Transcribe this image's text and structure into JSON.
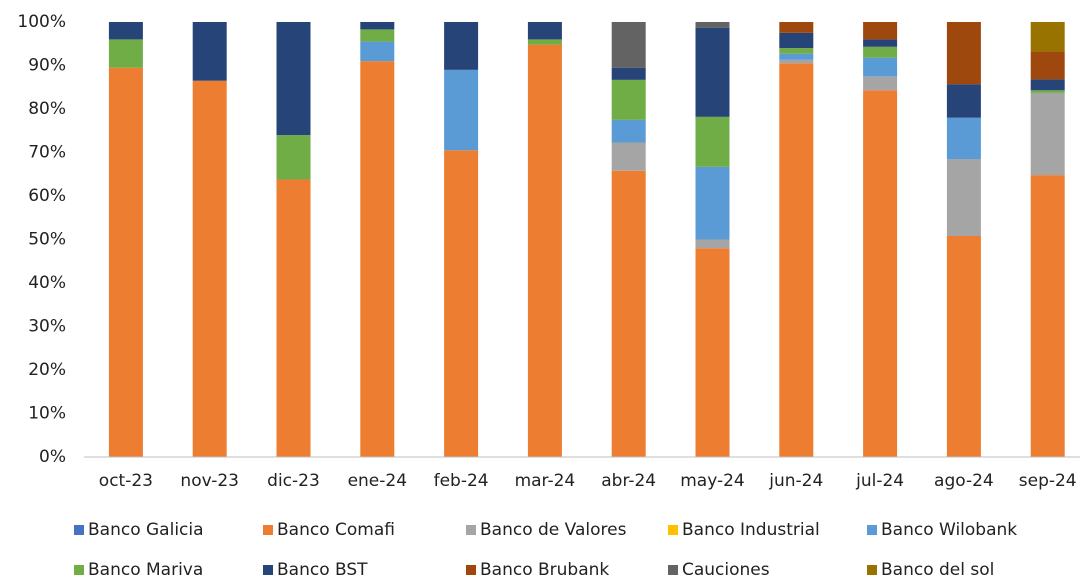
{
  "chart_data": {
    "type": "bar",
    "stacked": true,
    "categories": [
      "oct-23",
      "nov-23",
      "dic-23",
      "ene-24",
      "feb-24",
      "mar-24",
      "abr-24",
      "may-24",
      "jun-24",
      "jul-24",
      "ago-24",
      "sep-24"
    ],
    "ylim": [
      0,
      100
    ],
    "yticks": [
      {
        "value": 0,
        "label": "0%"
      },
      {
        "value": 10,
        "label": "10%"
      },
      {
        "value": 20,
        "label": "20%"
      },
      {
        "value": 30,
        "label": "30%"
      },
      {
        "value": 40,
        "label": "40%"
      },
      {
        "value": 50,
        "label": "50%"
      },
      {
        "value": 60,
        "label": "60%"
      },
      {
        "value": 70,
        "label": "70%"
      },
      {
        "value": 80,
        "label": "80%"
      },
      {
        "value": 90,
        "label": "90%"
      },
      {
        "value": 100,
        "label": "100%"
      }
    ],
    "grid": false,
    "legend": "bottom",
    "series": [
      {
        "name": "Banco Galicia",
        "color": "#4472c4",
        "values": [
          0,
          0,
          0,
          0,
          0,
          0,
          0,
          0,
          0,
          0,
          0,
          0
        ]
      },
      {
        "name": "Banco Comafi",
        "color": "#ed7d31",
        "values": [
          89.5,
          86.5,
          63.8,
          91,
          70.5,
          94.8,
          65.8,
          48,
          90.5,
          84.3,
          50.8,
          64.8
        ]
      },
      {
        "name": "Banco de Valores",
        "color": "#a5a5a5",
        "values": [
          0,
          0,
          0,
          0,
          0,
          0,
          6.5,
          2,
          0.8,
          3.2,
          17.7,
          18.9
        ]
      },
      {
        "name": "Banco Industrial",
        "color": "#ffc000",
        "values": [
          0,
          0,
          0,
          0,
          0,
          0,
          0,
          0,
          0,
          0,
          0,
          0
        ]
      },
      {
        "name": "Banco Wilobank",
        "color": "#5b9bd5",
        "values": [
          0,
          0,
          0,
          4.5,
          18.5,
          0,
          5.2,
          16.7,
          1.4,
          4.3,
          9.5,
          0
        ]
      },
      {
        "name": "Banco Mariva",
        "color": "#70ad47",
        "values": [
          6.5,
          0,
          10.2,
          2.8,
          0,
          1.2,
          9.2,
          11.5,
          1.3,
          2.5,
          0,
          0.6
        ]
      },
      {
        "name": "Banco BST",
        "color": "#264478",
        "values": [
          4,
          13.5,
          26,
          1.7,
          11,
          4,
          2.8,
          20.5,
          3.5,
          1.7,
          7.7,
          2.5
        ]
      },
      {
        "name": "Banco Brubank",
        "color": "#9e480e",
        "values": [
          0,
          0,
          0,
          0,
          0,
          0,
          0,
          0,
          2.5,
          4,
          14.3,
          6.4
        ]
      },
      {
        "name": "Cauciones",
        "color": "#636363",
        "values": [
          0,
          0,
          0,
          0,
          0,
          0,
          10.5,
          1.3,
          0,
          0,
          0,
          0
        ]
      },
      {
        "name": "Banco del sol",
        "color": "#997300",
        "values": [
          0,
          0,
          0,
          0,
          0,
          0,
          0,
          0,
          0,
          0,
          0,
          6.8
        ]
      }
    ]
  }
}
